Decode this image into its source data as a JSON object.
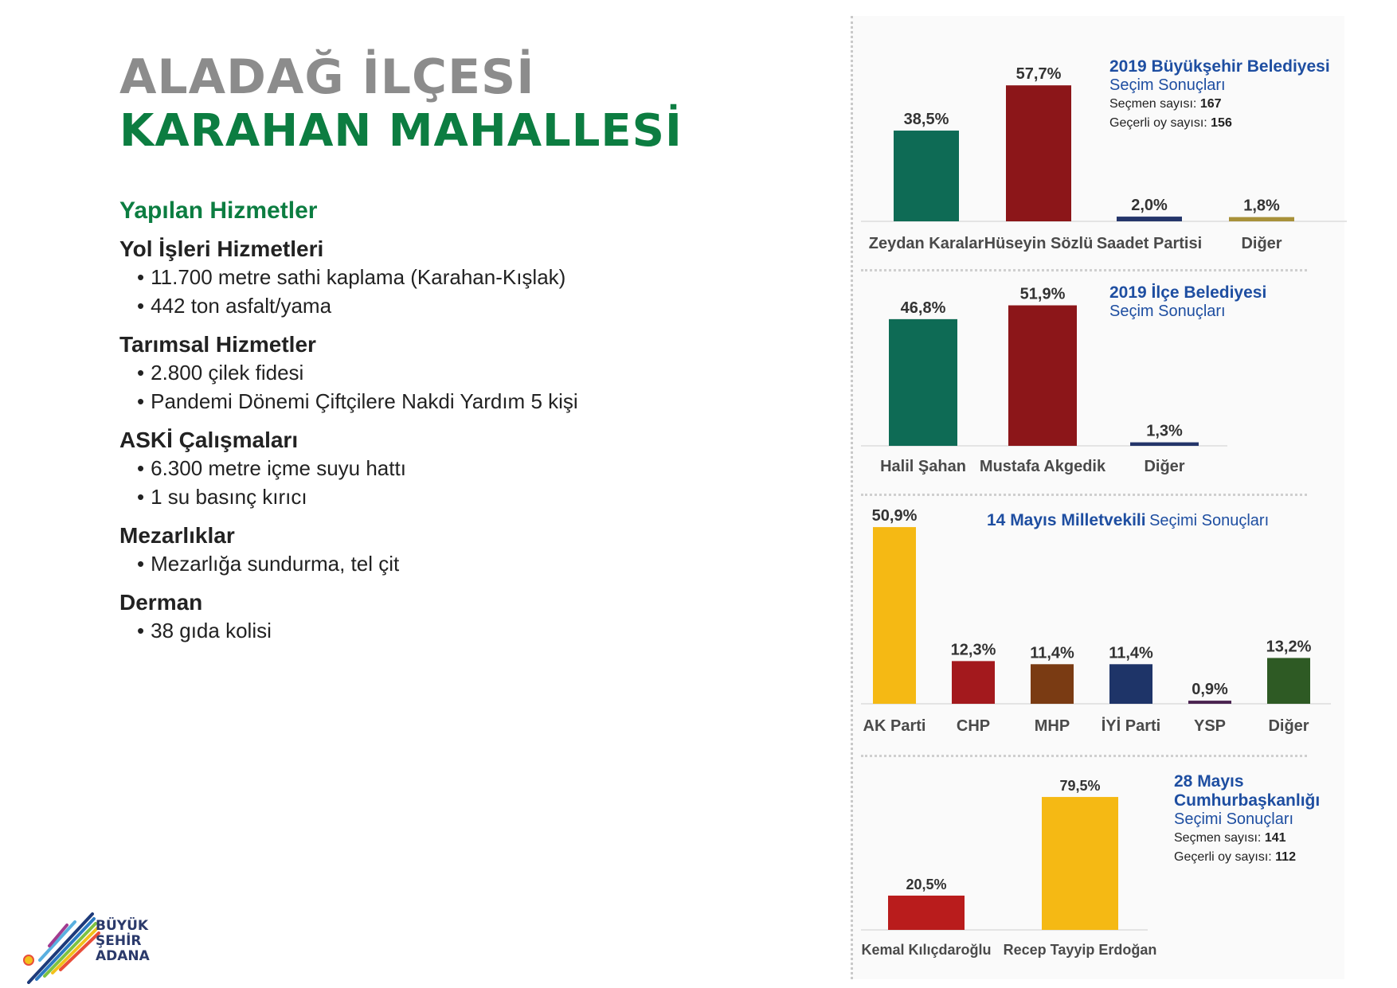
{
  "header": {
    "district": "ALADAĞ İLÇESİ",
    "neighborhood": "KARAHAN MAHALLESİ"
  },
  "services": {
    "title": "Yapılan Hizmetler",
    "groups": [
      {
        "title": "Yol İşleri Hizmetleri",
        "items": [
          "11.700 metre sathi kaplama (Karahan-Kışlak)",
          "442 ton asfalt/yama"
        ]
      },
      {
        "title": "Tarımsal Hizmetler",
        "items": [
          "2.800 çilek fidesi",
          "Pandemi Dönemi Çiftçilere Nakdi Yardım 5 kişi"
        ]
      },
      {
        "title": "ASKİ Çalışmaları",
        "items": [
          "6.300 metre içme suyu hattı",
          "1 su basınç kırıcı"
        ]
      },
      {
        "title": "Mezarlıklar",
        "items": [
          "Mezarlığa sundurma, tel çit"
        ]
      },
      {
        "title": "Derman",
        "items": [
          "38 gıda kolisi"
        ]
      }
    ]
  },
  "logo": {
    "line1": "BÜYÜK",
    "line2": "ŞEHİR",
    "line3": "ADANA"
  },
  "chart_data": [
    {
      "type": "bar",
      "title": "2019 Büyükşehir Belediyesi",
      "subtitle": "Seçim Sonuçları",
      "voters_label": "Seçmen sayısı:",
      "voters_value": "167",
      "valid_label": "Geçerli oy sayısı:",
      "valid_value": "156",
      "categories": [
        "Zeydan Karalar",
        "Hüseyin Sözlü",
        "Saadet Partisi",
        "Diğer"
      ],
      "values": [
        38.5,
        57.7,
        2.0,
        1.8
      ],
      "labels": [
        "38,5%",
        "57,7%",
        "2,0%",
        "1,8%"
      ],
      "colors": [
        "#0e6b55",
        "#8c1619",
        "#24356a",
        "#a8913a"
      ],
      "ylim": [
        0,
        100
      ]
    },
    {
      "type": "bar",
      "title": "2019 İlçe Belediyesi",
      "subtitle": "Seçim Sonuçları",
      "categories": [
        "Halil Şahan",
        "Mustafa Akgedik",
        "Diğer"
      ],
      "values": [
        46.8,
        51.9,
        1.3
      ],
      "labels": [
        "46,8%",
        "51,9%",
        "1,3%"
      ],
      "colors": [
        "#0e6b55",
        "#8c1619",
        "#24356a"
      ],
      "ylim": [
        0,
        100
      ]
    },
    {
      "type": "bar",
      "title": "14 Mayıs Milletvekili",
      "subtitle": "Seçimi Sonuçları",
      "categories": [
        "AK Parti",
        "CHP",
        "MHP",
        "İYİ Parti",
        "YSP",
        "Diğer"
      ],
      "values": [
        50.9,
        12.3,
        11.4,
        11.4,
        0.9,
        13.2
      ],
      "labels": [
        "50,9%",
        "12,3%",
        "11,4%",
        "11,4%",
        "0,9%",
        "13,2%"
      ],
      "colors": [
        "#f5b914",
        "#a3191d",
        "#7a3b13",
        "#1e3468",
        "#4a2350",
        "#2e5a24"
      ],
      "ylim": [
        0,
        100
      ]
    },
    {
      "type": "bar",
      "title_line1": "28 Mayıs",
      "title_line2": "Cumhurbaşkanlığı",
      "subtitle": "Seçimi Sonuçları",
      "voters_label": "Seçmen sayısı:",
      "voters_value": "141",
      "valid_label": "Geçerli oy sayısı:",
      "valid_value": "112",
      "categories": [
        "Kemal Kılıçdaroğlu",
        "Recep Tayyip Erdoğan"
      ],
      "values": [
        20.5,
        79.5
      ],
      "labels": [
        "20,5%",
        "79,5%"
      ],
      "colors": [
        "#b91c1c",
        "#f5b914"
      ],
      "ylim": [
        0,
        100
      ]
    }
  ]
}
